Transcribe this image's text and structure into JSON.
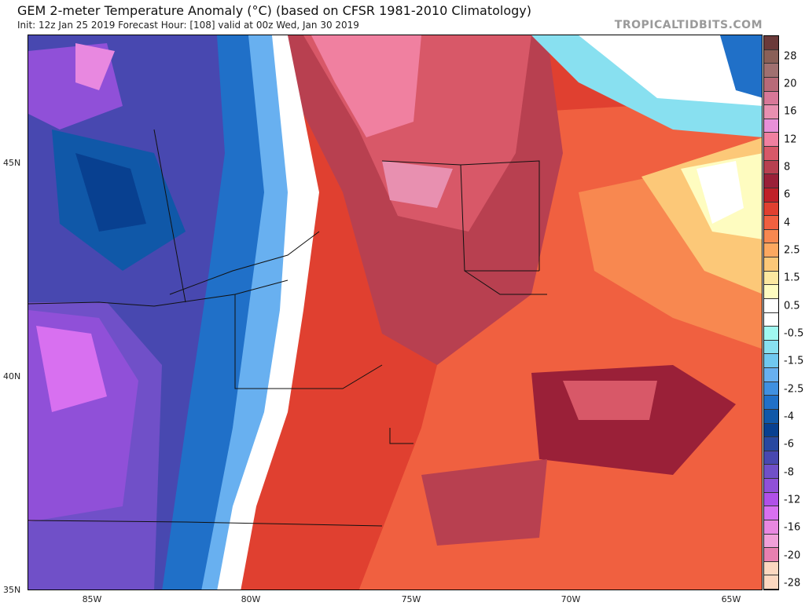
{
  "header": {
    "title": "GEM 2-meter Temperature Anomaly (°C) (based on CFSR 1981-2010 Climatology)",
    "subtitle": "Init: 12z Jan 25 2019   Forecast Hour: [108]   valid at 00z Wed, Jan 30 2019",
    "brand": "TROPICALTIDBITS.COM"
  },
  "map": {
    "latitude_labels": [
      "45N",
      "40N",
      "35N"
    ],
    "longitude_labels": [
      "85W",
      "80W",
      "75W",
      "70W",
      "65W"
    ],
    "region": "Northeastern United States and southeastern Canada"
  },
  "colorbar": {
    "labels": [
      "28",
      "20",
      "16",
      "12",
      "8",
      "6",
      "4",
      "2.5",
      "1.5",
      "0.5",
      "-0.5",
      "-1.5",
      "-2.5",
      "-4",
      "-6",
      "-8",
      "-12",
      "-16",
      "-20",
      "-28"
    ],
    "colors": [
      "#6b3a3a",
      "#8a6058",
      "#a07070",
      "#b86a78",
      "#d87898",
      "#e890b0",
      "#e890d8",
      "#f080a0",
      "#d85868",
      "#b84050",
      "#9a2038",
      "#c02028",
      "#e04030",
      "#f06040",
      "#f88850",
      "#fca860",
      "#fcc878",
      "#fce8a0",
      "#fefcc0",
      "#ffffff",
      "#ffffff",
      "#a0f8f0",
      "#88e0f0",
      "#70c8f0",
      "#68b0f0",
      "#4090e0",
      "#2070c8",
      "#1058a8",
      "#084090",
      "#2848a0",
      "#4848b0",
      "#7050c8",
      "#9050d8",
      "#b050e8",
      "#d870f0",
      "#e888e0",
      "#f0a0d8",
      "#e880b0",
      "#fcd8c0",
      "#fcd8c0"
    ]
  }
}
